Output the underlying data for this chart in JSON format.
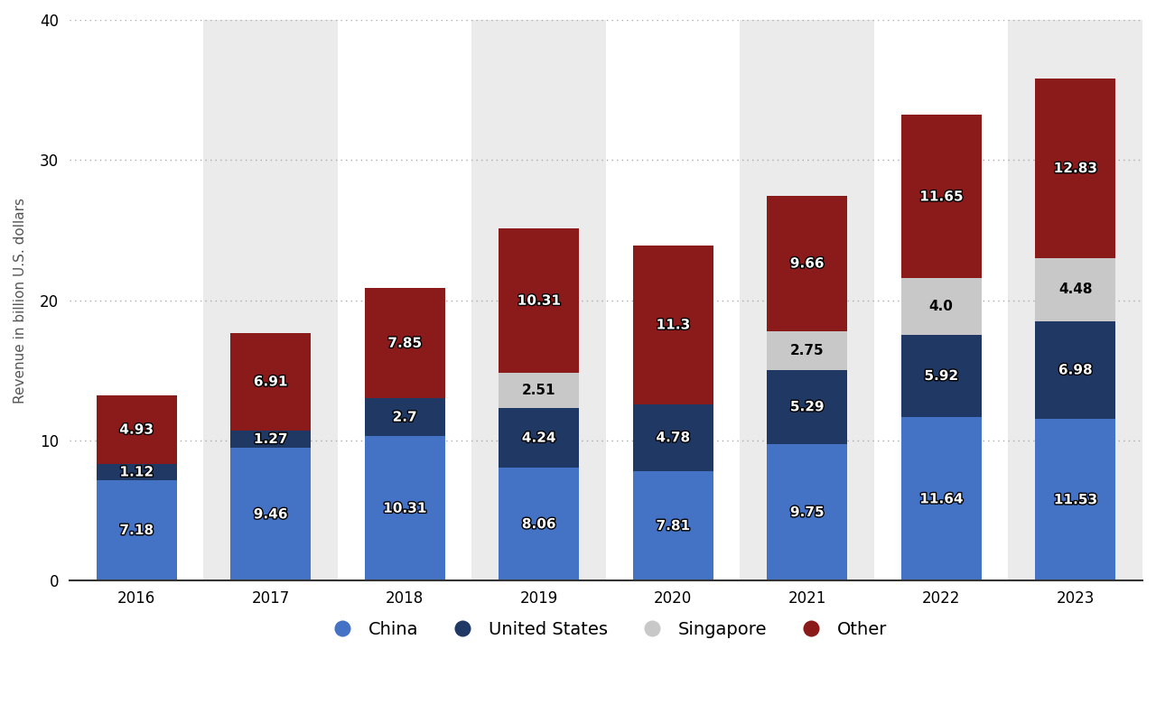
{
  "years": [
    "2016",
    "2017",
    "2018",
    "2019",
    "2020",
    "2021",
    "2022",
    "2023"
  ],
  "china": [
    7.18,
    9.46,
    10.31,
    8.06,
    7.81,
    9.75,
    11.64,
    11.53
  ],
  "us": [
    1.12,
    1.27,
    2.7,
    4.24,
    4.78,
    5.29,
    5.92,
    6.98
  ],
  "singapore": [
    0,
    0,
    0,
    2.51,
    0,
    2.75,
    4.0,
    4.48
  ],
  "other": [
    4.93,
    6.91,
    7.85,
    10.31,
    11.3,
    9.66,
    11.65,
    12.83
  ],
  "china_color": "#4472C4",
  "us_color": "#1F3864",
  "singapore_color": "#C8C8C8",
  "other_color": "#8B1A1A",
  "bg_color": "#FFFFFF",
  "plot_bg_color": "#FFFFFF",
  "stripe_color": "#EBEBEB",
  "stripe_indices": [
    1,
    3,
    5,
    7
  ],
  "ylabel": "Revenue in billion U.S. dollars",
  "ylim": [
    0,
    40
  ],
  "yticks": [
    0,
    10,
    20,
    30,
    40
  ],
  "legend_labels": [
    "China",
    "United States",
    "Singapore",
    "Other"
  ],
  "bar_width": 0.6,
  "label_fontsize": 11,
  "tick_fontsize": 12,
  "ylabel_fontsize": 11
}
